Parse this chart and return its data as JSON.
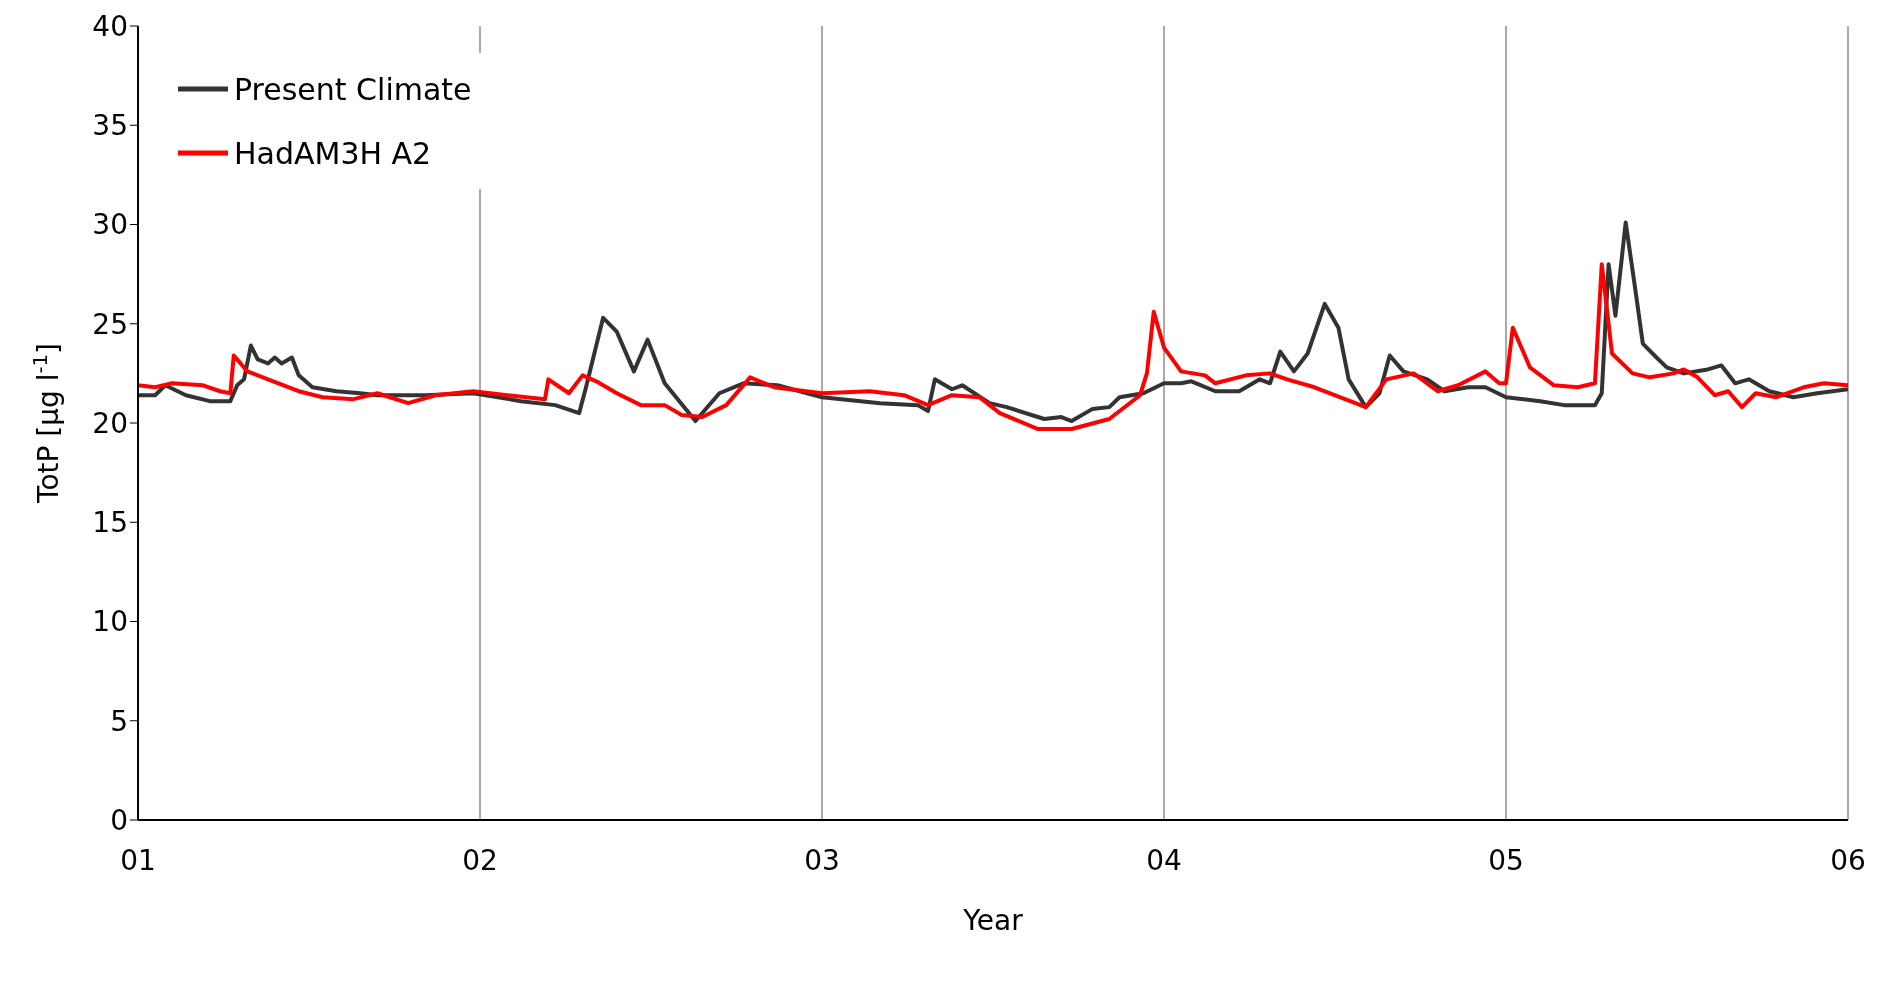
{
  "chart_data": {
    "type": "line",
    "xlabel": "Year",
    "ylabel": "TotP [μg l$^{-1}$]",
    "xlim": [
      1,
      6
    ],
    "xticks": [
      {
        "value": 1,
        "label": "01"
      },
      {
        "value": 2,
        "label": "02"
      },
      {
        "value": 3,
        "label": "03"
      },
      {
        "value": 4,
        "label": "04"
      },
      {
        "value": 5,
        "label": "05"
      },
      {
        "value": 6,
        "label": "06"
      }
    ],
    "ylim": [
      0,
      40
    ],
    "yticks": [
      0,
      5,
      10,
      15,
      20,
      25,
      30,
      35,
      40
    ],
    "grid": "x",
    "legend": "top left",
    "marker": "none",
    "line_style": "solid",
    "series": [
      {
        "name": "Present Climate",
        "color": "#333333",
        "x": [
          1.0,
          1.05,
          1.08,
          1.14,
          1.21,
          1.27,
          1.29,
          1.31,
          1.33,
          1.35,
          1.38,
          1.4,
          1.42,
          1.45,
          1.47,
          1.51,
          1.58,
          1.65,
          1.7,
          1.84,
          1.98,
          2.12,
          2.22,
          2.29,
          2.31,
          2.36,
          2.4,
          2.45,
          2.49,
          2.54,
          2.63,
          2.7,
          2.77,
          2.87,
          3.0,
          3.17,
          3.28,
          3.31,
          3.33,
          3.38,
          3.41,
          3.49,
          3.54,
          3.65,
          3.7,
          3.73,
          3.79,
          3.84,
          3.87,
          3.94,
          4.0,
          4.05,
          4.08,
          4.15,
          4.22,
          4.28,
          4.31,
          4.34,
          4.38,
          4.42,
          4.47,
          4.51,
          4.54,
          4.59,
          4.63,
          4.66,
          4.7,
          4.77,
          4.82,
          4.89,
          4.94,
          5.0,
          5.1,
          5.17,
          5.26,
          5.28,
          5.3,
          5.32,
          5.35,
          5.38,
          5.4,
          5.44,
          5.47,
          5.52,
          5.59,
          5.63,
          5.67,
          5.71,
          5.77,
          5.84,
          5.91,
          6.0
        ],
        "values": [
          21.4,
          21.4,
          21.9,
          21.4,
          21.1,
          21.1,
          21.9,
          22.2,
          23.9,
          23.2,
          23.0,
          23.3,
          23.0,
          23.3,
          22.4,
          21.8,
          21.6,
          21.5,
          21.4,
          21.4,
          21.5,
          21.1,
          20.9,
          20.5,
          21.8,
          25.3,
          24.6,
          22.6,
          24.2,
          22.0,
          20.1,
          21.5,
          22.0,
          21.9,
          21.3,
          21.0,
          20.9,
          20.6,
          22.2,
          21.7,
          21.9,
          21.0,
          20.8,
          20.2,
          20.3,
          20.1,
          20.7,
          20.8,
          21.3,
          21.5,
          22.0,
          22.0,
          22.1,
          21.6,
          21.6,
          22.2,
          22.0,
          23.6,
          22.6,
          23.5,
          26.0,
          24.8,
          22.2,
          20.8,
          21.5,
          23.4,
          22.6,
          22.2,
          21.6,
          21.8,
          21.8,
          21.3,
          21.1,
          20.9,
          20.9,
          21.5,
          28.0,
          25.4,
          30.1,
          26.5,
          24.0,
          23.3,
          22.8,
          22.5,
          22.7,
          22.9,
          22.0,
          22.2,
          21.6,
          21.3,
          21.5,
          21.7
        ]
      },
      {
        "name": "HadAM3H A2",
        "color": "#ff0000",
        "x": [
          1.0,
          1.05,
          1.1,
          1.19,
          1.24,
          1.27,
          1.28,
          1.32,
          1.38,
          1.47,
          1.54,
          1.63,
          1.7,
          1.79,
          1.87,
          1.98,
          2.08,
          2.19,
          2.2,
          2.26,
          2.3,
          2.34,
          2.4,
          2.47,
          2.54,
          2.59,
          2.65,
          2.72,
          2.79,
          2.86,
          3.0,
          3.14,
          3.24,
          3.31,
          3.38,
          3.46,
          3.52,
          3.63,
          3.73,
          3.84,
          3.93,
          3.95,
          3.97,
          4.0,
          4.05,
          4.12,
          4.15,
          4.24,
          4.31,
          4.36,
          4.44,
          4.59,
          4.65,
          4.73,
          4.8,
          4.86,
          4.94,
          4.98,
          5.0,
          5.02,
          5.07,
          5.14,
          5.21,
          5.26,
          5.28,
          5.31,
          5.37,
          5.42,
          5.49,
          5.52,
          5.56,
          5.61,
          5.65,
          5.69,
          5.73,
          5.79,
          5.87,
          5.93,
          6.0
        ],
        "values": [
          21.9,
          21.8,
          22.0,
          21.9,
          21.6,
          21.5,
          23.4,
          22.6,
          22.2,
          21.6,
          21.3,
          21.2,
          21.5,
          21.0,
          21.4,
          21.6,
          21.4,
          21.2,
          22.2,
          21.5,
          22.4,
          22.1,
          21.5,
          20.9,
          20.9,
          20.4,
          20.3,
          20.9,
          22.3,
          21.8,
          21.5,
          21.6,
          21.4,
          20.9,
          21.4,
          21.3,
          20.5,
          19.7,
          19.7,
          20.2,
          21.4,
          22.5,
          25.6,
          23.8,
          22.6,
          22.4,
          22.0,
          22.4,
          22.5,
          22.2,
          21.8,
          20.8,
          22.2,
          22.5,
          21.6,
          21.9,
          22.6,
          22.0,
          22.0,
          24.8,
          22.8,
          21.9,
          21.8,
          22.0,
          28.0,
          23.5,
          22.5,
          22.3,
          22.5,
          22.7,
          22.3,
          21.4,
          21.6,
          20.8,
          21.5,
          21.3,
          21.8,
          22.0,
          21.9
        ]
      }
    ]
  }
}
